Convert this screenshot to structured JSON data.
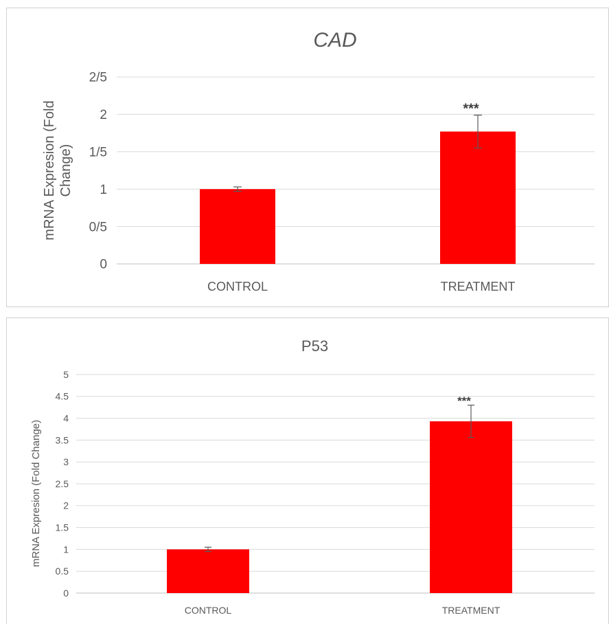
{
  "chart_data": [
    {
      "type": "bar",
      "title": "CAD",
      "xlabel": "",
      "ylabel": "mRNA Expresion (Fold Change)",
      "categories": [
        "CONTROL",
        "TREATMENT"
      ],
      "values": [
        1.0,
        1.77
      ],
      "errors": [
        0.03,
        0.22
      ],
      "significance": [
        "",
        "***"
      ],
      "ylim": [
        0,
        2.5
      ],
      "yticks": [
        0,
        0.5,
        1,
        1.5,
        2,
        2.5
      ],
      "ytick_labels": [
        "0",
        "0/5",
        "1",
        "1/5",
        "2",
        "2/5"
      ],
      "grid": true,
      "color": "#ff0000"
    },
    {
      "type": "bar",
      "title": "P53",
      "xlabel": "",
      "ylabel": "mRNA Expresion (Fold Change)",
      "categories": [
        "CONTROL",
        "TREATMENT"
      ],
      "values": [
        1.0,
        3.93
      ],
      "errors": [
        0.05,
        0.37
      ],
      "significance": [
        "",
        "***"
      ],
      "ylim": [
        0,
        5
      ],
      "yticks": [
        0,
        0.5,
        1,
        1.5,
        2,
        2.5,
        3,
        3.5,
        4,
        4.5,
        5
      ],
      "ytick_labels": [
        "0",
        "0.5",
        "1",
        "1.5",
        "2",
        "2.5",
        "3",
        "3.5",
        "4",
        "4.5",
        "5"
      ],
      "grid": true,
      "color": "#ff0000"
    }
  ]
}
